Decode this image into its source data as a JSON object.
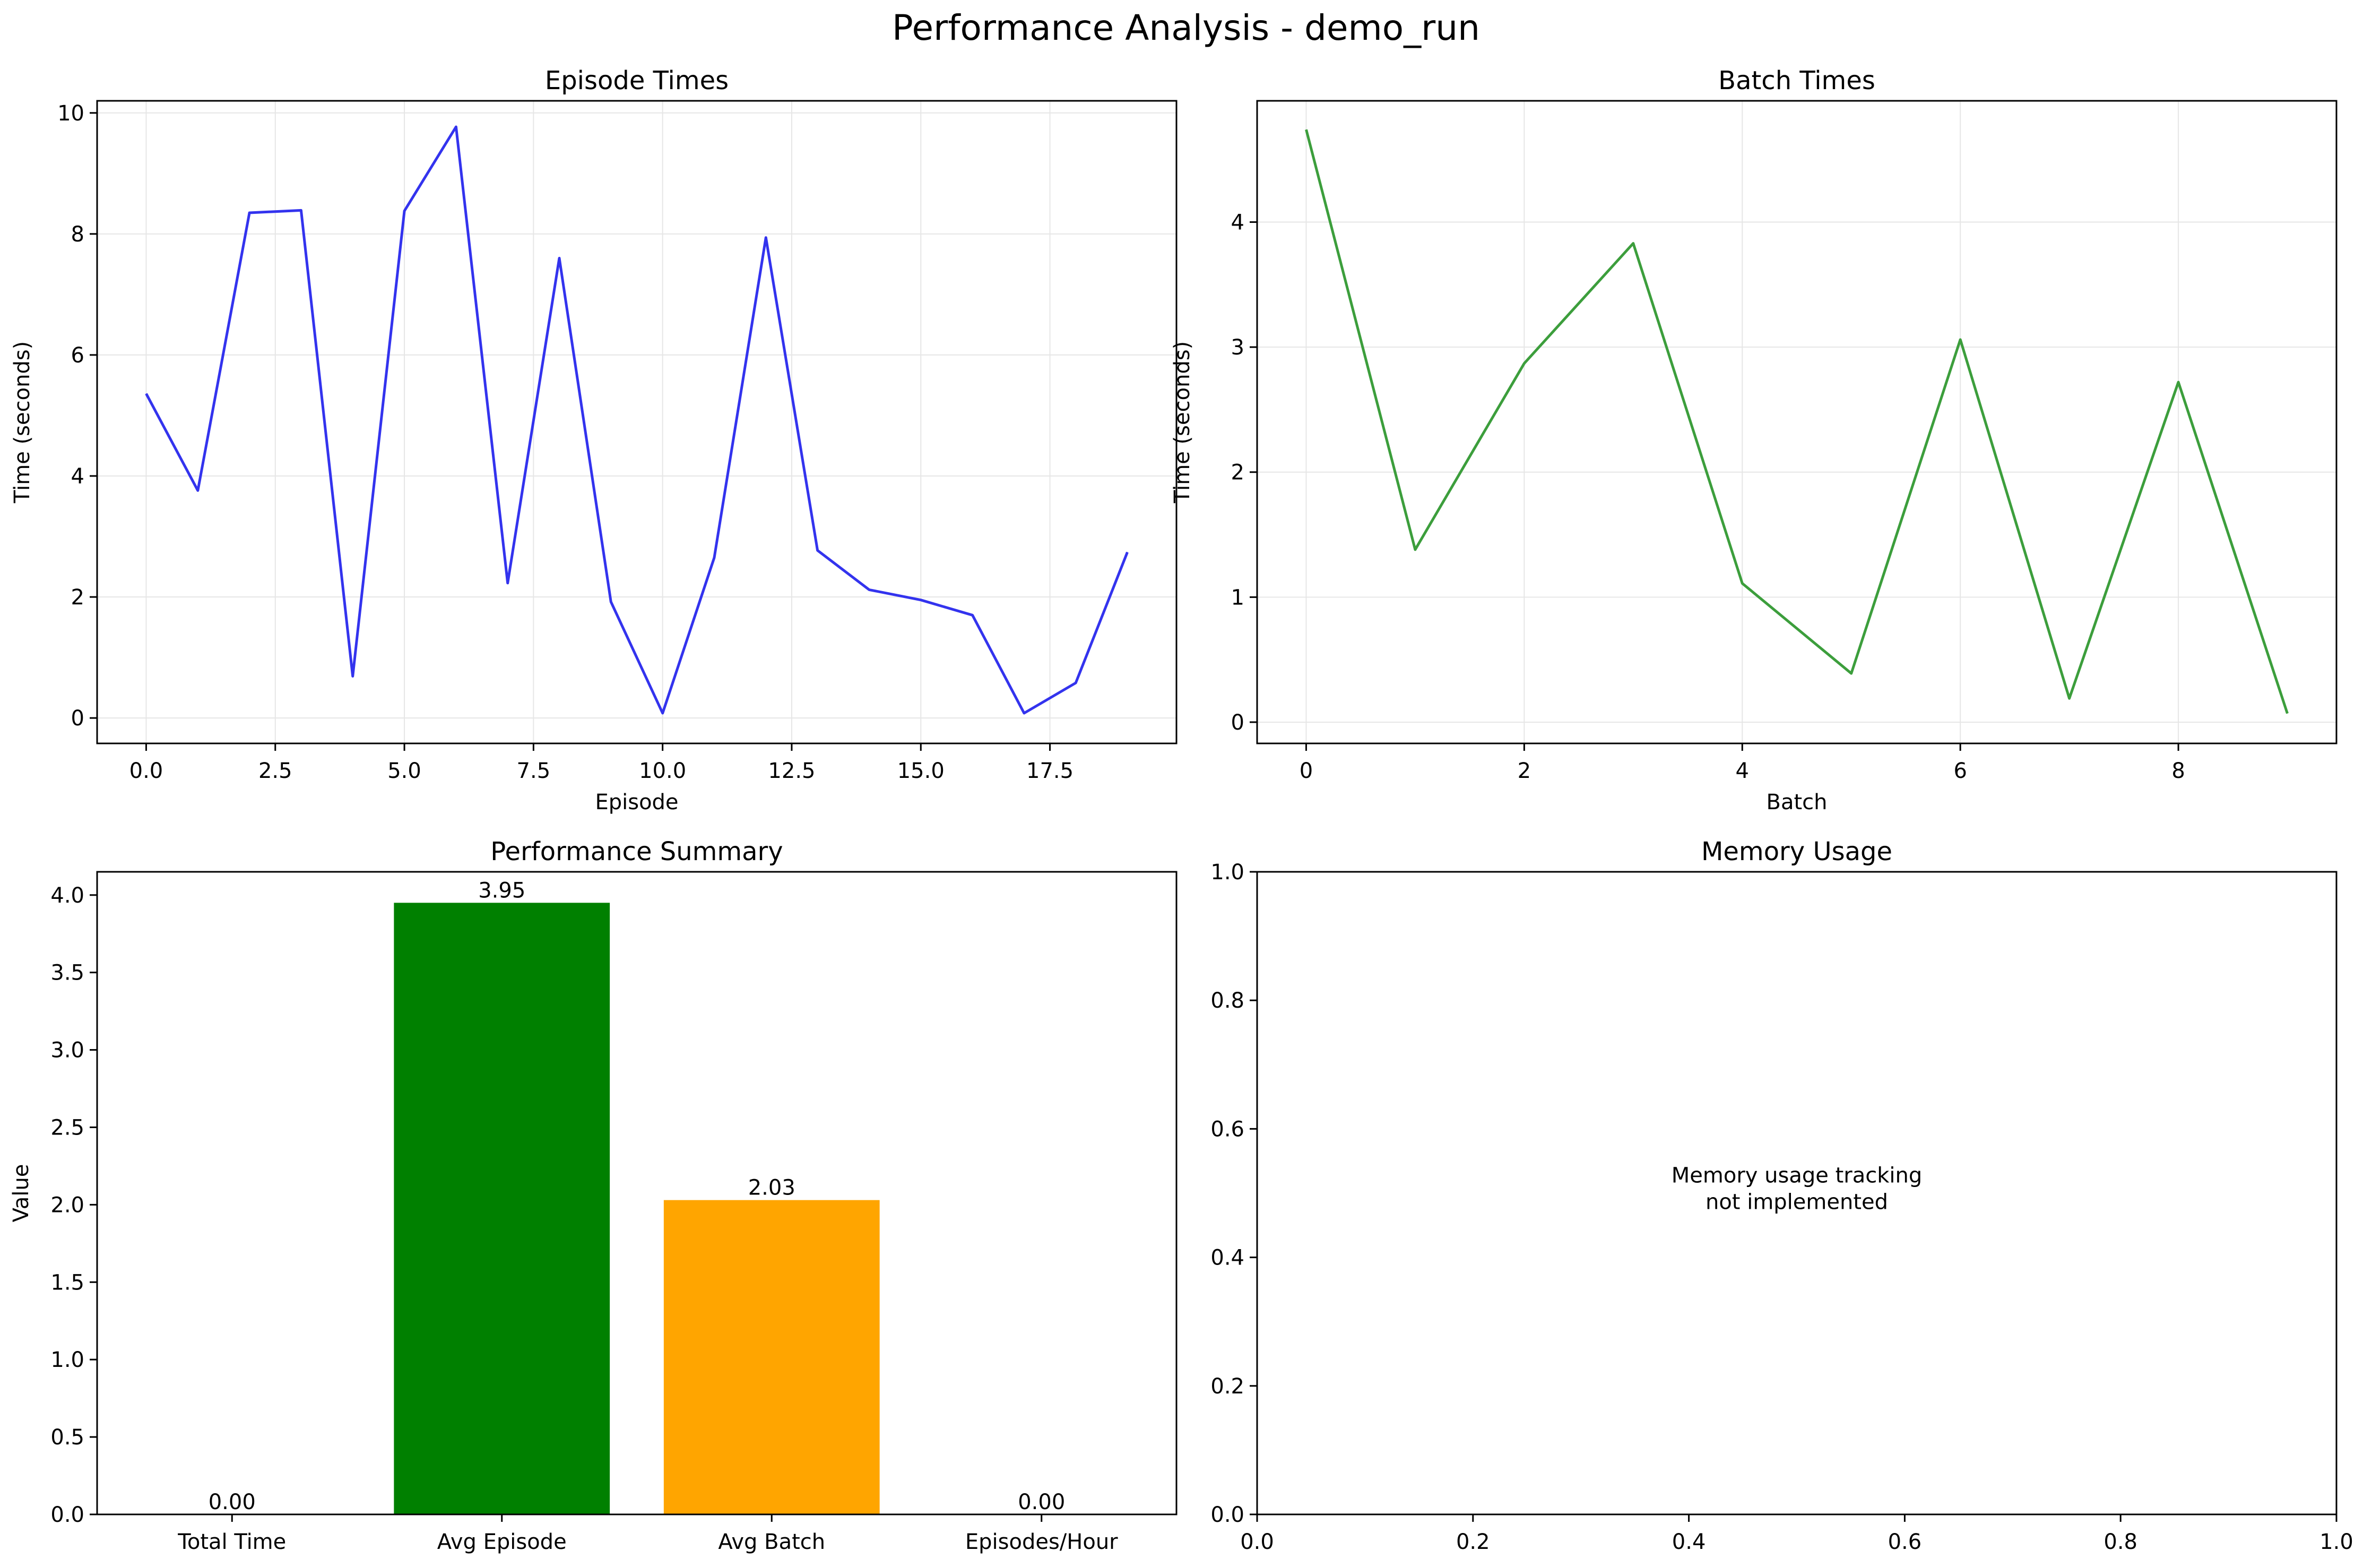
{
  "figure_title": "Performance Analysis - demo_run",
  "colors": {
    "episode_line": "#3333ee",
    "batch_line": "#3c9e3c",
    "grid": "#e6e6e6",
    "bar_avg_episode": "#008000",
    "bar_avg_batch": "#ffa500"
  },
  "chart_data": [
    {
      "type": "line",
      "title": "Episode Times",
      "xlabel": "Episode",
      "ylabel": "Time (seconds)",
      "grid": true,
      "xlim": [
        -0.95,
        19.95
      ],
      "ylim": [
        -0.42,
        10.2
      ],
      "xticks": [
        0,
        2.5,
        5,
        7.5,
        10,
        12.5,
        15,
        17.5
      ],
      "xtick_labels": [
        "0.0",
        "2.5",
        "5.0",
        "7.5",
        "10.0",
        "12.5",
        "15.0",
        "17.5"
      ],
      "yticks": [
        0,
        2,
        4,
        6,
        8,
        10
      ],
      "ytick_labels": [
        "0",
        "2",
        "4",
        "6",
        "8",
        "10"
      ],
      "series": [
        {
          "x": [
            0,
            1,
            2,
            3,
            4,
            5,
            6,
            7,
            8,
            9,
            10,
            11,
            12,
            13,
            14,
            15,
            16,
            17,
            18,
            19
          ],
          "values": [
            5.36,
            3.76,
            8.35,
            8.39,
            0.69,
            8.38,
            9.77,
            2.23,
            7.6,
            1.92,
            0.08,
            2.65,
            7.94,
            2.77,
            2.12,
            1.95,
            1.7,
            0.08,
            0.58,
            2.74
          ]
        }
      ]
    },
    {
      "type": "line",
      "title": "Batch Times",
      "xlabel": "Batch",
      "ylabel": "Time (seconds)",
      "grid": true,
      "xlim": [
        -0.45,
        9.45
      ],
      "ylim": [
        -0.17,
        4.97
      ],
      "xticks": [
        0,
        2,
        4,
        6,
        8
      ],
      "xtick_labels": [
        "0",
        "2",
        "4",
        "6",
        "8"
      ],
      "yticks": [
        0,
        1,
        2,
        3,
        4
      ],
      "ytick_labels": [
        "0",
        "1",
        "2",
        "3",
        "4"
      ],
      "series": [
        {
          "x": [
            0,
            1,
            2,
            3,
            4,
            5,
            6,
            7,
            8,
            9
          ],
          "values": [
            4.74,
            1.38,
            2.87,
            3.83,
            1.11,
            0.39,
            3.06,
            0.19,
            2.72,
            0.07
          ]
        }
      ]
    },
    {
      "type": "bar",
      "title": "Performance Summary",
      "xlabel": "",
      "ylabel": "Value",
      "grid": false,
      "ylim": [
        0,
        4.15
      ],
      "yticks": [
        0,
        0.5,
        1,
        1.5,
        2,
        2.5,
        3,
        3.5,
        4
      ],
      "ytick_labels": [
        "0.0",
        "0.5",
        "1.0",
        "1.5",
        "2.0",
        "2.5",
        "3.0",
        "3.5",
        "4.0"
      ],
      "categories": [
        "Total Time",
        "Avg Episode",
        "Avg Batch",
        "Episodes/Hour"
      ],
      "values": [
        0.0,
        3.95,
        2.03,
        0.0
      ],
      "value_labels": [
        "0.00",
        "3.95",
        "2.03",
        "0.00"
      ],
      "bar_colors": [
        "#1f77b4",
        "#008000",
        "#ffa500",
        "#d62728"
      ]
    },
    {
      "type": "line",
      "title": "Memory Usage",
      "xlabel": "",
      "ylabel": "",
      "grid": false,
      "xlim": [
        0,
        1
      ],
      "ylim": [
        0,
        1
      ],
      "xticks": [
        0,
        0.2,
        0.4,
        0.6,
        0.8,
        1.0
      ],
      "xtick_labels": [
        "0.0",
        "0.2",
        "0.4",
        "0.6",
        "0.8",
        "1.0"
      ],
      "yticks": [
        0,
        0.2,
        0.4,
        0.6,
        0.8,
        1.0
      ],
      "ytick_labels": [
        "0.0",
        "0.2",
        "0.4",
        "0.6",
        "0.8",
        "1.0"
      ],
      "series": [],
      "annotation": [
        "Memory usage tracking",
        "not implemented"
      ]
    }
  ]
}
